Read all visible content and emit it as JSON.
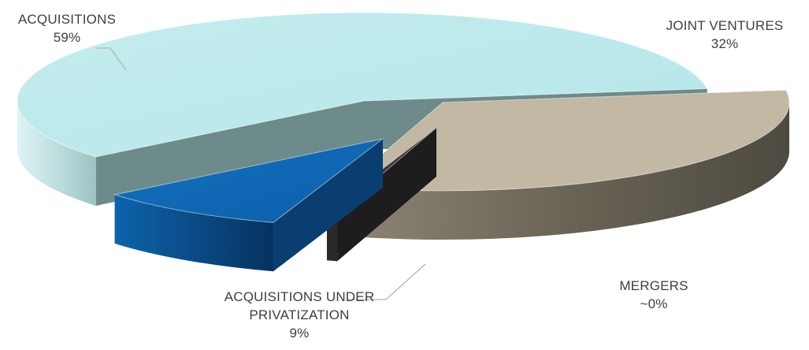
{
  "chart_data": {
    "type": "pie",
    "style": "3d-exploded",
    "title": "",
    "slices": [
      {
        "name": "ACQUISITIONS",
        "display": "59%",
        "value": 59,
        "color": "#bfe9eb"
      },
      {
        "name": "JOINT VENTURES",
        "display": "32%",
        "value": 32,
        "color": "#c3b9a5"
      },
      {
        "name": "MERGERS",
        "display": "~0%",
        "value": 0.5,
        "color": "#2d2b2b"
      },
      {
        "name": "ACQUISITIONS UNDER PRIVATIZATION",
        "display": "9%",
        "value": 9,
        "color": "#0f5fa8"
      }
    ],
    "legend": "none",
    "labels": "outside with leader lines"
  }
}
